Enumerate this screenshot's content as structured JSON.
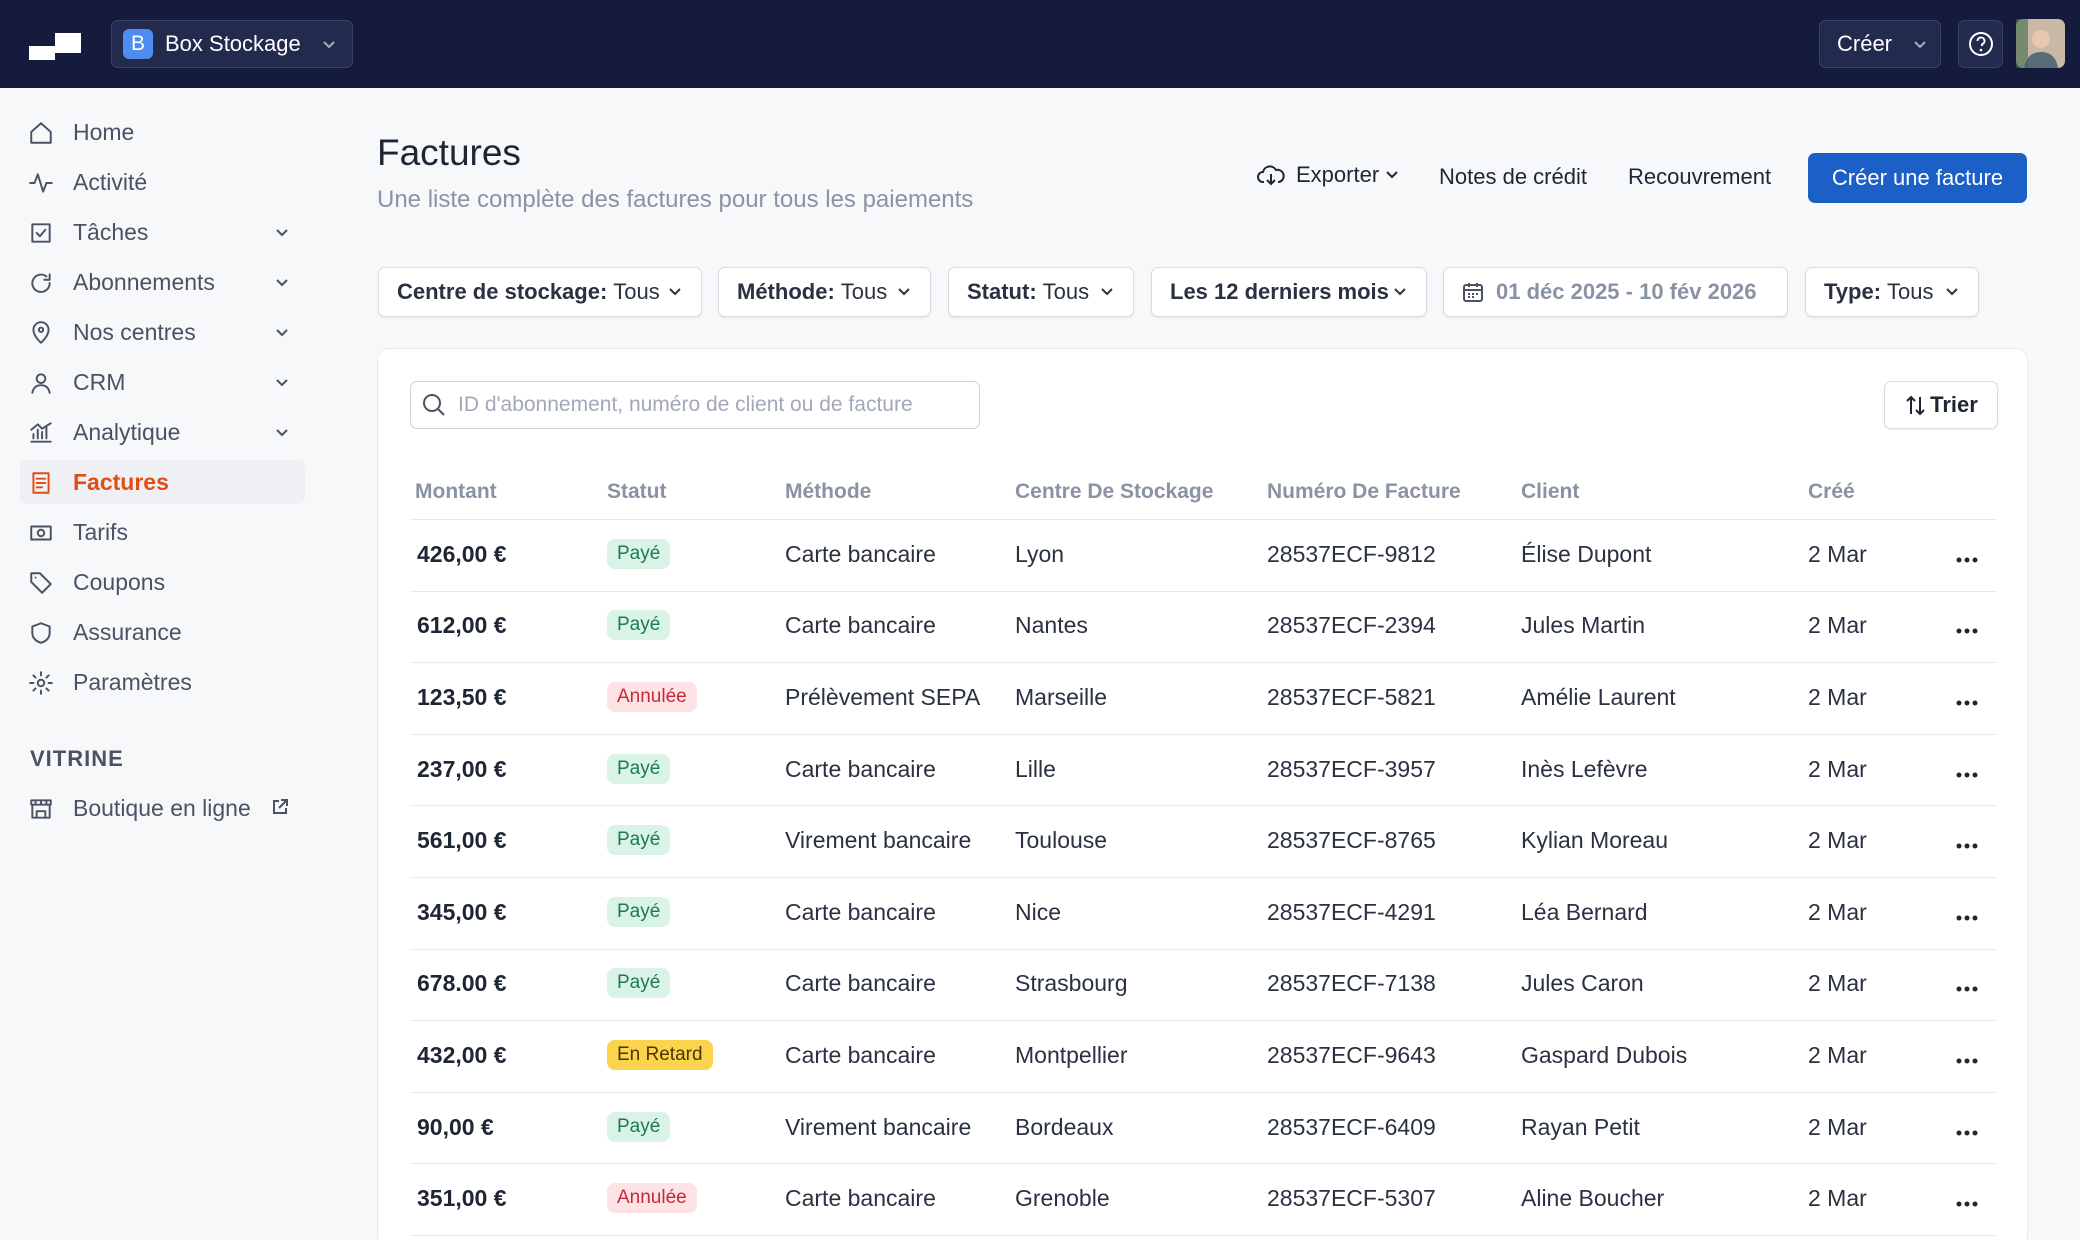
{
  "header": {
    "workspace_initial": "B",
    "workspace": "Box Stockage",
    "create": "Créer"
  },
  "sidebar": {
    "items": [
      {
        "label": "Home",
        "icon": "home"
      },
      {
        "label": "Activité",
        "icon": "activity"
      },
      {
        "label": "Tâches",
        "icon": "check",
        "expandable": true
      },
      {
        "label": "Abonnements",
        "icon": "refresh",
        "expandable": true
      },
      {
        "label": "Nos centres",
        "icon": "pin",
        "expandable": true
      },
      {
        "label": "CRM",
        "icon": "user",
        "expandable": true
      },
      {
        "label": "Analytique",
        "icon": "chart",
        "expandable": true
      },
      {
        "label": "Factures",
        "icon": "doc",
        "active": true
      },
      {
        "label": "Tarifs",
        "icon": "money"
      },
      {
        "label": "Coupons",
        "icon": "tag"
      },
      {
        "label": "Assurance",
        "icon": "shield"
      },
      {
        "label": "Paramètres",
        "icon": "gear"
      }
    ],
    "section": "VITRINE",
    "shop": "Boutique en ligne"
  },
  "page": {
    "title": "Factures",
    "subtitle": "Une liste complète des factures pour tous les paiements",
    "export": "Exporter",
    "credit_notes": "Notes de crédit",
    "recovery": "Recouvrement",
    "primary": "Créer une facture"
  },
  "filters": [
    {
      "label": "Centre de stockage:",
      "value": "Tous"
    },
    {
      "label": "Méthode:",
      "value": "Tous"
    },
    {
      "label": "Statut:",
      "value": "Tous"
    },
    {
      "label": "Les 12 derniers mois"
    },
    {
      "date": "01 déc 2025 - 10 fév 2026"
    },
    {
      "label": "Type:",
      "value": "Tous"
    }
  ],
  "search_placeholder": "ID d'abonnement, numéro de client ou de facture",
  "sort": "Trier",
  "table": {
    "columns": [
      "Montant",
      "Statut",
      "Méthode",
      "Centre De Stockage",
      "Numéro De Facture",
      "Client",
      "Créé"
    ],
    "rows": [
      {
        "amount": "426,00 €",
        "status": "Payé",
        "status_color": "green",
        "method": "Carte bancaire",
        "center": "Lyon",
        "invoice": "28537ECF-9812",
        "client": "Élise Dupont",
        "created": "2 Mar"
      },
      {
        "amount": "612,00 €",
        "status": "Payé",
        "status_color": "green",
        "method": "Carte bancaire",
        "center": "Nantes",
        "invoice": "28537ECF-2394",
        "client": "Jules Martin",
        "created": "2 Mar"
      },
      {
        "amount": "123,50 €",
        "status": "Annulée",
        "status_color": "red",
        "method": "Prélèvement SEPA",
        "center": "Marseille",
        "invoice": "28537ECF-5821",
        "client": "Amélie Laurent",
        "created": "2 Mar"
      },
      {
        "amount": "237,00 €",
        "status": "Payé",
        "status_color": "green",
        "method": "Carte bancaire",
        "center": "Lille",
        "invoice": "28537ECF-3957",
        "client": "Inès Lefèvre",
        "created": "2 Mar"
      },
      {
        "amount": "561,00 €",
        "status": "Payé",
        "status_color": "green",
        "method": "Virement bancaire",
        "center": "Toulouse",
        "invoice": "28537ECF-8765",
        "client": "Kylian Moreau",
        "created": "2 Mar"
      },
      {
        "amount": "345,00 €",
        "status": "Payé",
        "status_color": "green",
        "method": "Carte bancaire",
        "center": "Nice",
        "invoice": "28537ECF-4291",
        "client": "Léa Bernard",
        "created": "2 Mar"
      },
      {
        "amount": "678.00 €",
        "status": "Payé",
        "status_color": "green",
        "method": "Carte bancaire",
        "center": "Strasbourg",
        "invoice": "28537ECF-7138",
        "client": "Jules Caron",
        "created": "2 Mar"
      },
      {
        "amount": "432,00 €",
        "status": "En Retard",
        "status_color": "yellow",
        "method": "Carte bancaire",
        "center": "Montpellier",
        "invoice": "28537ECF-9643",
        "client": "Gaspard Dubois",
        "created": "2 Mar"
      },
      {
        "amount": "90,00 €",
        "status": "Payé",
        "status_color": "green",
        "method": "Virement bancaire",
        "center": "Bordeaux",
        "invoice": "28537ECF-6409",
        "client": "Rayan Petit",
        "created": "2 Mar"
      },
      {
        "amount": "351,00 €",
        "status": "Annulée",
        "status_color": "red",
        "method": "Carte bancaire",
        "center": "Grenoble",
        "invoice": "28537ECF-5307",
        "client": "Aline Boucher",
        "created": "2 Mar"
      }
    ]
  }
}
